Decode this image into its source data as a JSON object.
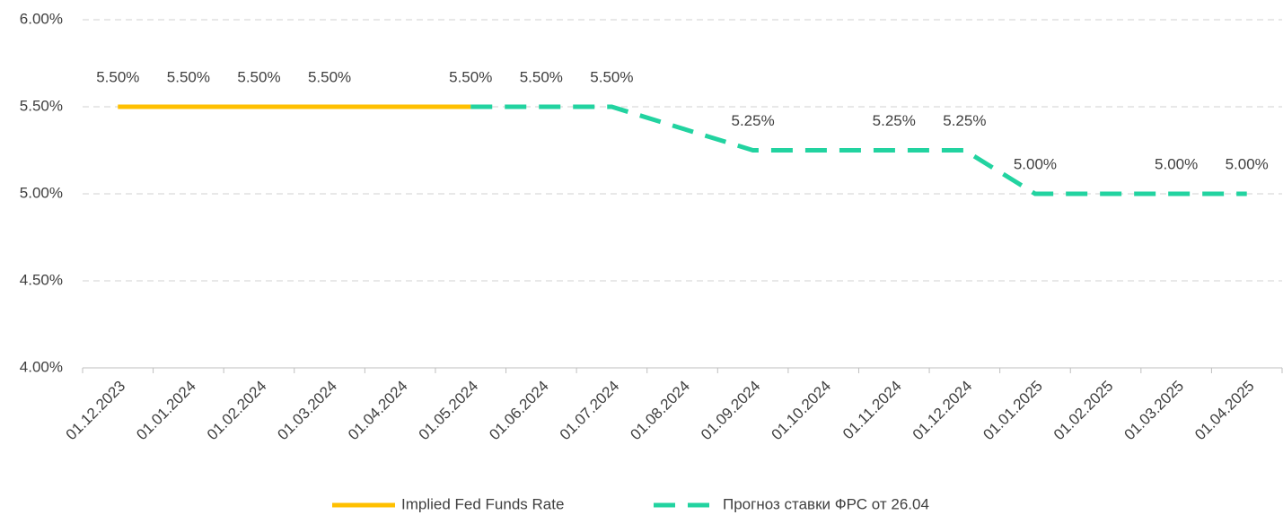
{
  "chart_data": {
    "type": "line",
    "categories": [
      "01.12.2023",
      "01.01.2024",
      "01.02.2024",
      "01.03.2024",
      "01.04.2024",
      "01.05.2024",
      "01.06.2024",
      "01.07.2024",
      "01.08.2024",
      "01.09.2024",
      "01.10.2024",
      "01.11.2024",
      "01.12.2024",
      "01.01.2025",
      "01.02.2025",
      "01.03.2025",
      "01.04.2025"
    ],
    "series": [
      {
        "name": "Implied Fed Funds Rate",
        "color": "#FFC000",
        "dashed": false,
        "values": [
          5.5,
          5.5,
          5.5,
          5.5,
          5.5,
          5.5,
          null,
          null,
          null,
          null,
          null,
          null,
          null,
          null,
          null,
          null,
          null
        ],
        "value_labels": [
          "5.50%",
          "5.50%",
          "5.50%",
          "5.50%",
          null,
          "5.50%",
          null,
          null,
          null,
          null,
          null,
          null,
          null,
          null,
          null,
          null,
          null
        ]
      },
      {
        "name": "Прогноз ставки ФРС от 26.04",
        "color": "#22D3A0",
        "dashed": true,
        "values": [
          null,
          null,
          null,
          null,
          null,
          5.5,
          5.5,
          5.5,
          5.375,
          5.25,
          5.25,
          5.25,
          5.25,
          5.0,
          5.0,
          5.0,
          5.0
        ],
        "value_labels": [
          null,
          null,
          null,
          null,
          null,
          null,
          "5.50%",
          "5.50%",
          null,
          "5.25%",
          null,
          "5.25%",
          "5.25%",
          "5.00%",
          null,
          "5.00%",
          "5.00%"
        ]
      }
    ],
    "ylim": [
      4,
      6
    ],
    "yticks": [
      {
        "value": 4,
        "label": "4.00%"
      },
      {
        "value": 4.5,
        "label": "4.50%"
      },
      {
        "value": 5,
        "label": "5.00%"
      },
      {
        "value": 5.5,
        "label": "5.50%"
      },
      {
        "value": 6,
        "label": "6.00%"
      }
    ],
    "grid": true,
    "legend": "bottom"
  }
}
